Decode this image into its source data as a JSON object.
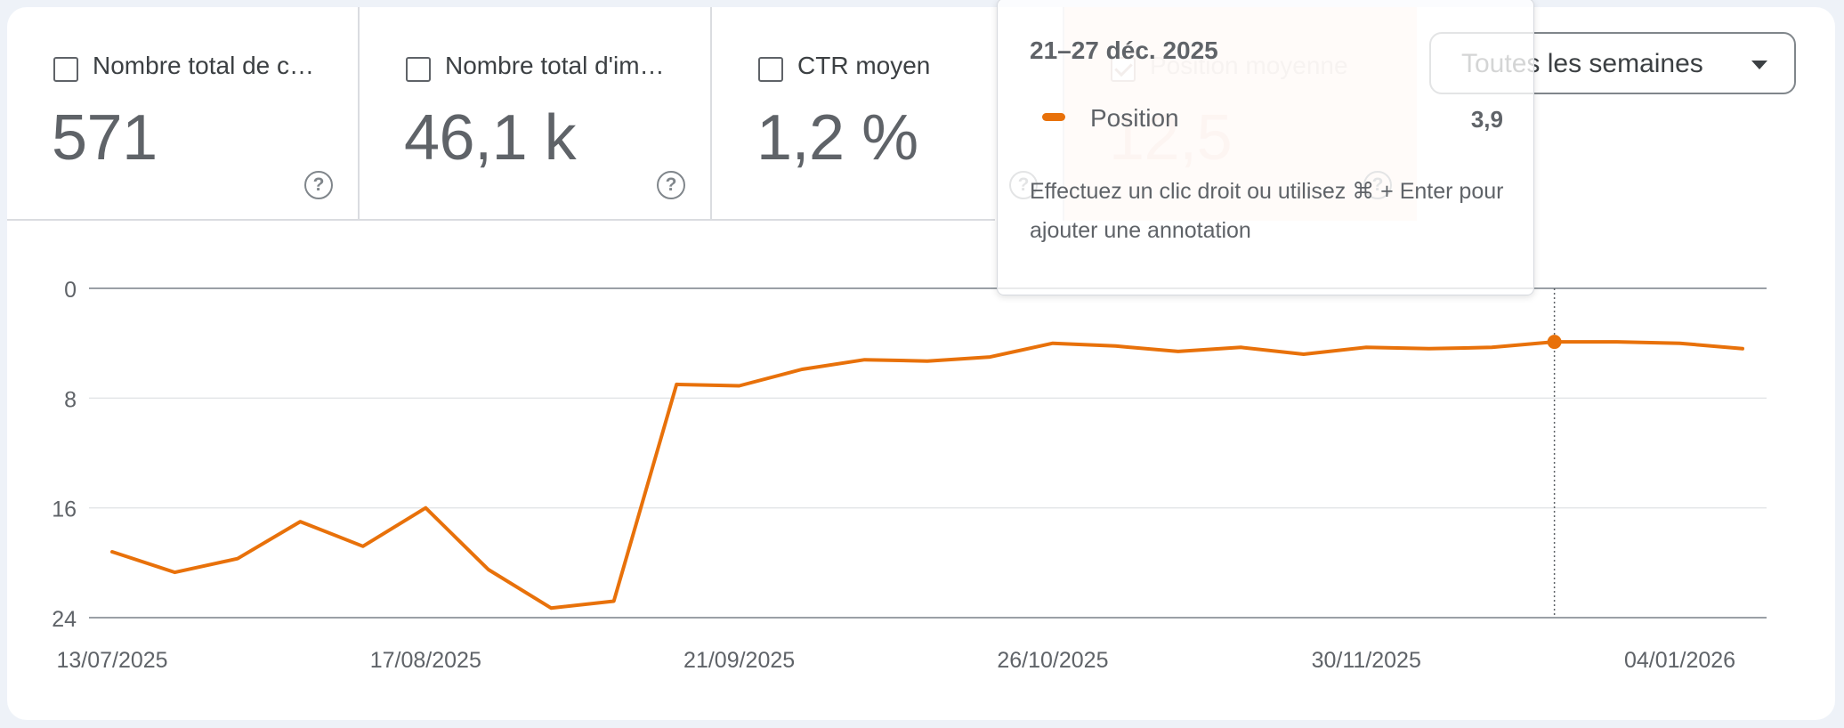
{
  "metrics": [
    {
      "label": "Nombre total de c…",
      "value": "571",
      "selected": false
    },
    {
      "label": "Nombre total d'im…",
      "value": "46,1 k",
      "selected": false
    },
    {
      "label": "CTR moyen",
      "value": "1,2 %",
      "selected": false
    },
    {
      "label": "Position moyenne",
      "value": "12,5",
      "selected": true
    }
  ],
  "help_glyph": "?",
  "period_select": {
    "value": "Toutes les semaines"
  },
  "tooltip": {
    "date": "21–27 déc. 2025",
    "series_name": "Position",
    "value": "3,9",
    "hint": "Effectuez un clic droit ou utilisez ⌘ + Enter pour ajouter une annotation"
  },
  "colors": {
    "line": "#e8710a",
    "selected_card": "#fdece4"
  },
  "chart_data": {
    "type": "line",
    "title": "",
    "xlabel": "",
    "ylabel": "",
    "y_inverted": true,
    "ylim": [
      0,
      24
    ],
    "yticks": [
      0,
      8,
      16,
      24
    ],
    "xtick_labels": [
      "13/07/2025",
      "17/08/2025",
      "21/09/2025",
      "26/10/2025",
      "30/11/2025",
      "04/01/2026"
    ],
    "grid": true,
    "x": [
      "13/07/2025",
      "20/07/2025",
      "27/07/2025",
      "03/08/2025",
      "10/08/2025",
      "17/08/2025",
      "24/08/2025",
      "31/08/2025",
      "07/09/2025",
      "14/09/2025",
      "21/09/2025",
      "28/09/2025",
      "05/10/2025",
      "12/10/2025",
      "19/10/2025",
      "26/10/2025",
      "02/11/2025",
      "09/11/2025",
      "16/11/2025",
      "23/11/2025",
      "30/11/2025",
      "07/12/2025",
      "14/12/2025",
      "21/12/2025",
      "28/12/2025",
      "04/01/2026",
      "11/01/2026"
    ],
    "series": [
      {
        "name": "Position",
        "values": [
          19.2,
          20.7,
          19.7,
          17.0,
          18.8,
          16.0,
          20.5,
          23.3,
          22.8,
          7.0,
          7.1,
          5.9,
          5.2,
          5.3,
          5.0,
          4.0,
          4.2,
          4.6,
          4.3,
          4.8,
          4.3,
          4.4,
          4.3,
          3.9,
          3.9,
          4.0,
          4.4
        ]
      }
    ],
    "highlight_index": 23
  }
}
